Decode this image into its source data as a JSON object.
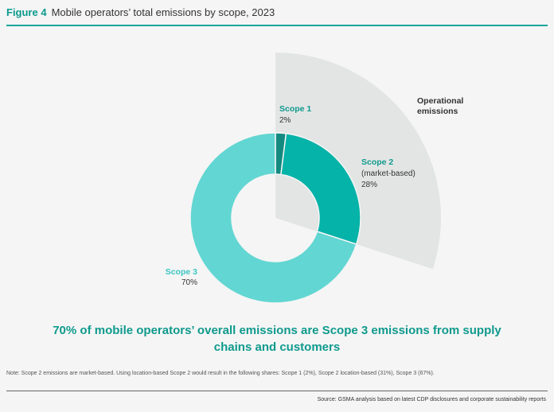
{
  "header": {
    "figure_label": "Figure 4",
    "title": "Mobile operators’ total emissions by scope, 2023"
  },
  "colors": {
    "scope1": "#138a80",
    "scope2": "#06b3a8",
    "scope3": "#62d6d2",
    "operational": "#e3e5e5",
    "accent": "#0f9a8d"
  },
  "chart_data": {
    "type": "pie",
    "variant": "donut",
    "title": "Mobile operators’ total emissions by scope, 2023",
    "slices": [
      {
        "name": "Scope 1",
        "sublabel": "",
        "value": 2,
        "label": "2%"
      },
      {
        "name": "Scope 2",
        "sublabel": "(market-based)",
        "value": 28,
        "label": "28%"
      },
      {
        "name": "Scope 3",
        "sublabel": "",
        "value": 70,
        "label": "70%"
      }
    ],
    "annotation": {
      "text_line1": "Operational",
      "text_line2": "emissions",
      "covers": [
        "Scope 1",
        "Scope 2"
      ]
    }
  },
  "callout": {
    "line1": "70% of mobile operators’ overall emissions are Scope 3 emissions from supply",
    "line2": "chains and customers"
  },
  "note": "Note: Scope 2 emissions are market-based. Using location-based Scope 2 would result in the following shares: Scope 1 (2%), Scope 2 location-based (31%), Scope 3 (67%).",
  "source": "Source: GSMA analysis based on latest CDP disclosures and corporate sustainability reports"
}
